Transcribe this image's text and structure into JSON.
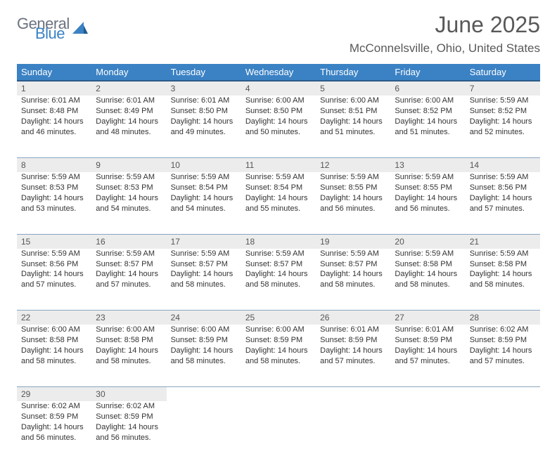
{
  "logo": {
    "word1": "General",
    "word2": "Blue",
    "brand_color": "#3b82c4",
    "gray_color": "#6b7280"
  },
  "title": "June 2025",
  "location": "McConnelsville, Ohio, United States",
  "colors": {
    "header_bg": "#3b82c4",
    "header_border": "#2b5a8a",
    "daynum_bg": "#ececec",
    "cell_border": "#8aa6bf",
    "text": "#333333",
    "title_text": "#595959"
  },
  "fonts": {
    "title_size": 32,
    "subtitle_size": 17,
    "dayheader_size": 13,
    "daynum_size": 12,
    "cell_size": 11
  },
  "day_headers": [
    "Sunday",
    "Monday",
    "Tuesday",
    "Wednesday",
    "Thursday",
    "Friday",
    "Saturday"
  ],
  "weeks": [
    [
      {
        "n": "1",
        "sr": "6:01 AM",
        "ss": "8:48 PM",
        "dl": "14 hours and 46 minutes."
      },
      {
        "n": "2",
        "sr": "6:01 AM",
        "ss": "8:49 PM",
        "dl": "14 hours and 48 minutes."
      },
      {
        "n": "3",
        "sr": "6:01 AM",
        "ss": "8:50 PM",
        "dl": "14 hours and 49 minutes."
      },
      {
        "n": "4",
        "sr": "6:00 AM",
        "ss": "8:50 PM",
        "dl": "14 hours and 50 minutes."
      },
      {
        "n": "5",
        "sr": "6:00 AM",
        "ss": "8:51 PM",
        "dl": "14 hours and 51 minutes."
      },
      {
        "n": "6",
        "sr": "6:00 AM",
        "ss": "8:52 PM",
        "dl": "14 hours and 51 minutes."
      },
      {
        "n": "7",
        "sr": "5:59 AM",
        "ss": "8:52 PM",
        "dl": "14 hours and 52 minutes."
      }
    ],
    [
      {
        "n": "8",
        "sr": "5:59 AM",
        "ss": "8:53 PM",
        "dl": "14 hours and 53 minutes."
      },
      {
        "n": "9",
        "sr": "5:59 AM",
        "ss": "8:53 PM",
        "dl": "14 hours and 54 minutes."
      },
      {
        "n": "10",
        "sr": "5:59 AM",
        "ss": "8:54 PM",
        "dl": "14 hours and 54 minutes."
      },
      {
        "n": "11",
        "sr": "5:59 AM",
        "ss": "8:54 PM",
        "dl": "14 hours and 55 minutes."
      },
      {
        "n": "12",
        "sr": "5:59 AM",
        "ss": "8:55 PM",
        "dl": "14 hours and 56 minutes."
      },
      {
        "n": "13",
        "sr": "5:59 AM",
        "ss": "8:55 PM",
        "dl": "14 hours and 56 minutes."
      },
      {
        "n": "14",
        "sr": "5:59 AM",
        "ss": "8:56 PM",
        "dl": "14 hours and 57 minutes."
      }
    ],
    [
      {
        "n": "15",
        "sr": "5:59 AM",
        "ss": "8:56 PM",
        "dl": "14 hours and 57 minutes."
      },
      {
        "n": "16",
        "sr": "5:59 AM",
        "ss": "8:57 PM",
        "dl": "14 hours and 57 minutes."
      },
      {
        "n": "17",
        "sr": "5:59 AM",
        "ss": "8:57 PM",
        "dl": "14 hours and 58 minutes."
      },
      {
        "n": "18",
        "sr": "5:59 AM",
        "ss": "8:57 PM",
        "dl": "14 hours and 58 minutes."
      },
      {
        "n": "19",
        "sr": "5:59 AM",
        "ss": "8:57 PM",
        "dl": "14 hours and 58 minutes."
      },
      {
        "n": "20",
        "sr": "5:59 AM",
        "ss": "8:58 PM",
        "dl": "14 hours and 58 minutes."
      },
      {
        "n": "21",
        "sr": "5:59 AM",
        "ss": "8:58 PM",
        "dl": "14 hours and 58 minutes."
      }
    ],
    [
      {
        "n": "22",
        "sr": "6:00 AM",
        "ss": "8:58 PM",
        "dl": "14 hours and 58 minutes."
      },
      {
        "n": "23",
        "sr": "6:00 AM",
        "ss": "8:58 PM",
        "dl": "14 hours and 58 minutes."
      },
      {
        "n": "24",
        "sr": "6:00 AM",
        "ss": "8:59 PM",
        "dl": "14 hours and 58 minutes."
      },
      {
        "n": "25",
        "sr": "6:00 AM",
        "ss": "8:59 PM",
        "dl": "14 hours and 58 minutes."
      },
      {
        "n": "26",
        "sr": "6:01 AM",
        "ss": "8:59 PM",
        "dl": "14 hours and 57 minutes."
      },
      {
        "n": "27",
        "sr": "6:01 AM",
        "ss": "8:59 PM",
        "dl": "14 hours and 57 minutes."
      },
      {
        "n": "28",
        "sr": "6:02 AM",
        "ss": "8:59 PM",
        "dl": "14 hours and 57 minutes."
      }
    ],
    [
      {
        "n": "29",
        "sr": "6:02 AM",
        "ss": "8:59 PM",
        "dl": "14 hours and 56 minutes."
      },
      {
        "n": "30",
        "sr": "6:02 AM",
        "ss": "8:59 PM",
        "dl": "14 hours and 56 minutes."
      },
      null,
      null,
      null,
      null,
      null
    ]
  ],
  "labels": {
    "sunrise": "Sunrise:",
    "sunset": "Sunset:",
    "daylight": "Daylight:"
  }
}
